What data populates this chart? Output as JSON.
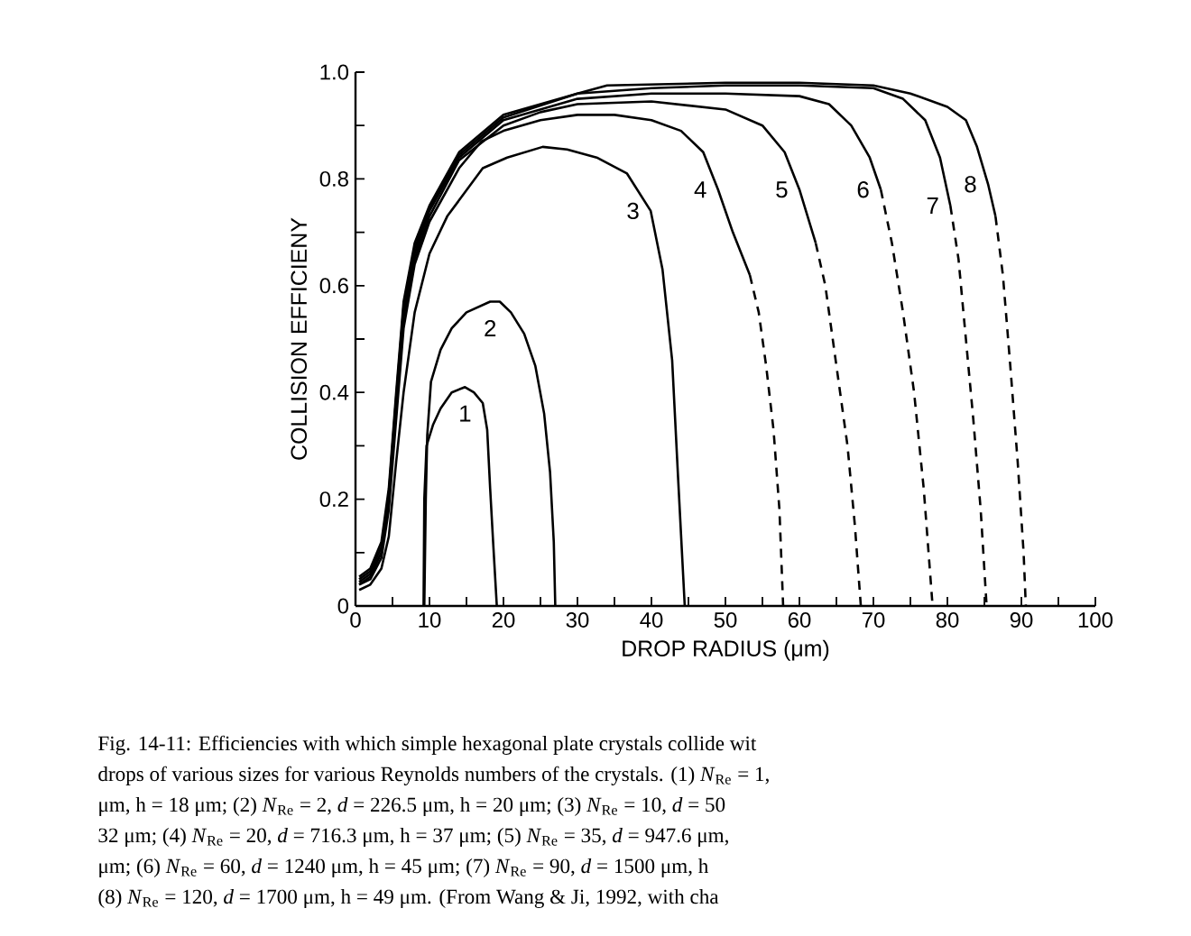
{
  "chart_data": {
    "type": "line",
    "xlabel": "DROP RADIUS (μm)",
    "ylabel": "COLLISION EFFICIENY",
    "xlim": [
      0,
      100
    ],
    "ylim": [
      0,
      1.0
    ],
    "xticks": [
      0,
      {
        "value": 5,
        "label": null
      },
      10,
      {
        "value": 15,
        "label": null
      },
      20,
      {
        "value": 25,
        "label": null
      },
      30,
      {
        "value": 35,
        "label": null
      },
      40,
      {
        "value": 45,
        "label": null
      },
      50,
      {
        "value": 55,
        "label": null
      },
      60,
      {
        "value": 65,
        "label": null
      },
      70,
      {
        "value": 75,
        "label": null
      },
      80,
      {
        "value": 85,
        "label": null
      },
      90,
      {
        "value": 95,
        "label": null
      },
      100
    ],
    "yticks": [
      0,
      {
        "value": 0.1,
        "label": null
      },
      0.2,
      {
        "value": 0.3,
        "label": null
      },
      0.4,
      {
        "value": 0.5,
        "label": null
      },
      0.6,
      {
        "value": 0.7,
        "label": null
      },
      0.8,
      {
        "value": 0.9,
        "label": null
      },
      {
        "value": 1.0,
        "label": "1.0"
      }
    ],
    "series": [
      {
        "name": "1",
        "color": "#000000",
        "line_style": "solid",
        "x": [
          9.2,
          9.3,
          9.6,
          10.5,
          11.5,
          13,
          14.8,
          16,
          17.2,
          17.8,
          18.2,
          18.6,
          19.1
        ],
        "values": [
          0,
          0.2,
          0.3,
          0.34,
          0.37,
          0.4,
          0.41,
          0.4,
          0.38,
          0.33,
          0.22,
          0.12,
          0
        ]
      },
      {
        "name": "2",
        "color": "#000000",
        "line_style": "solid",
        "x": [
          9.3,
          9.5,
          9.7,
          10.2,
          11.5,
          13,
          15,
          18.2,
          19.5,
          21,
          22.8,
          24.3,
          25.5,
          26.3,
          26.8,
          27
        ],
        "values": [
          0,
          0.2,
          0.32,
          0.42,
          0.48,
          0.52,
          0.55,
          0.57,
          0.57,
          0.55,
          0.51,
          0.45,
          0.36,
          0.25,
          0.12,
          0
        ]
      },
      {
        "name": "3",
        "color": "#000000",
        "line_style": "solid",
        "x": [
          0.5,
          2,
          3.5,
          4.5,
          5.5,
          6.5,
          8,
          10,
          12.4,
          17.2,
          20.5,
          25.3,
          28.6,
          32.6,
          36.7,
          39.9,
          41.5,
          42.8,
          43.6,
          44.5
        ],
        "values": [
          0.03,
          0.04,
          0.07,
          0.13,
          0.27,
          0.4,
          0.55,
          0.66,
          0.73,
          0.82,
          0.84,
          0.86,
          0.855,
          0.84,
          0.81,
          0.74,
          0.63,
          0.46,
          0.24,
          0
        ]
      },
      {
        "name": "4",
        "color": "#000000",
        "line_style": "solid",
        "x": [
          0.5,
          2,
          3.5,
          4.5,
          5.5,
          6.5,
          8,
          10,
          14,
          17,
          20,
          25,
          30,
          35,
          40,
          44,
          47,
          49,
          51,
          53.3
        ],
        "values": [
          0.04,
          0.05,
          0.09,
          0.18,
          0.35,
          0.52,
          0.64,
          0.72,
          0.82,
          0.87,
          0.89,
          0.91,
          0.92,
          0.92,
          0.91,
          0.89,
          0.85,
          0.78,
          0.7,
          0.62
        ]
      },
      {
        "color": "#000000",
        "line_style": "dashed",
        "x": [
          53.3,
          54.5,
          55.5,
          56.5,
          57.3,
          57.8
        ],
        "values": [
          0.62,
          0.55,
          0.45,
          0.33,
          0.18,
          0
        ]
      },
      {
        "name": "5",
        "color": "#000000",
        "line_style": "solid",
        "x": [
          0.5,
          2,
          3.5,
          4.5,
          5.5,
          6.5,
          8,
          10,
          14,
          20,
          25,
          30,
          40,
          50,
          55,
          58,
          60,
          62.2
        ],
        "values": [
          0.04,
          0.055,
          0.1,
          0.2,
          0.37,
          0.54,
          0.65,
          0.73,
          0.835,
          0.9,
          0.925,
          0.94,
          0.945,
          0.93,
          0.9,
          0.85,
          0.78,
          0.68
        ]
      },
      {
        "color": "#000000",
        "line_style": "dashed",
        "x": [
          62.2,
          63.5,
          65,
          66.5,
          67.5,
          68.3
        ],
        "values": [
          0.68,
          0.6,
          0.45,
          0.3,
          0.15,
          0
        ]
      },
      {
        "name": "6",
        "color": "#000000",
        "line_style": "solid",
        "x": [
          0.5,
          2,
          3.5,
          4.5,
          5.5,
          6.5,
          8,
          10,
          14,
          20,
          30,
          40,
          50,
          60,
          64,
          67,
          69.5,
          71
        ],
        "values": [
          0.045,
          0.06,
          0.1,
          0.2,
          0.38,
          0.55,
          0.66,
          0.74,
          0.84,
          0.91,
          0.95,
          0.96,
          0.96,
          0.955,
          0.94,
          0.9,
          0.84,
          0.78
        ]
      },
      {
        "color": "#000000",
        "line_style": "dashed",
        "x": [
          71,
          72.5,
          74,
          75.5,
          76.8,
          78
        ],
        "values": [
          0.78,
          0.68,
          0.55,
          0.4,
          0.22,
          0
        ]
      },
      {
        "name": "7",
        "color": "#000000",
        "line_style": "solid",
        "x": [
          0.5,
          2,
          3.5,
          4.5,
          5.5,
          6.5,
          8,
          10,
          14,
          20,
          30,
          40,
          50,
          60,
          70,
          74,
          77,
          79,
          80.4
        ],
        "values": [
          0.05,
          0.065,
          0.11,
          0.21,
          0.39,
          0.56,
          0.67,
          0.745,
          0.845,
          0.915,
          0.96,
          0.97,
          0.975,
          0.975,
          0.97,
          0.95,
          0.91,
          0.84,
          0.75
        ]
      },
      {
        "color": "#000000",
        "line_style": "dashed",
        "x": [
          80.4,
          81.5,
          82.5,
          83.5,
          84.5,
          85.3
        ],
        "values": [
          0.75,
          0.65,
          0.5,
          0.35,
          0.18,
          0
        ]
      },
      {
        "name": "8",
        "color": "#000000",
        "line_style": "solid",
        "x": [
          0.5,
          2,
          3.5,
          4.5,
          5.5,
          6.5,
          8,
          10,
          14,
          20,
          30,
          34,
          50,
          60,
          70,
          75,
          80,
          82.5,
          84,
          85.5,
          86.5
        ],
        "values": [
          0.055,
          0.07,
          0.12,
          0.22,
          0.4,
          0.57,
          0.68,
          0.75,
          0.85,
          0.92,
          0.96,
          0.975,
          0.98,
          0.98,
          0.975,
          0.96,
          0.935,
          0.91,
          0.86,
          0.79,
          0.73
        ]
      },
      {
        "color": "#000000",
        "line_style": "dashed",
        "x": [
          86.5,
          87.5,
          88.5,
          89.5,
          90.3,
          90.6
        ],
        "values": [
          0.73,
          0.62,
          0.45,
          0.27,
          0.1,
          0
        ]
      }
    ],
    "annotations": [
      "Fig. 14-11: Efficiencies with which simple hexagonal plate crystals collide wit",
      "drops of various sizes for various Reynolds numbers of the crystals. (1) *N*$_{Re}$ = 1,",
      "μm, h = 18 μm; (2) *N*$_{Re}$ = 2, *d* = 226.5 μm, h = 20 μm; (3) *N*$_{Re}$ = 10, *d* = 50",
      "32 μm; (4) *N*$_{Re}$ = 20, *d* = 716.3 μm, h = 37 μm; (5) *N*$_{Re}$ = 35, *d* = 947.6 μm,",
      "μm; (6) *N*$_{Re}$ = 60, *d* = 1240 μm, h = 45 μm; (7) *N*$_{Re}$ = 90, *d* = 1500 μm, h",
      "(8) *N*$_{Re}$ = 120, *d* = 1700 μm, h = 49 μm. (From Wang & Ji, 1992, with cha"
    ]
  }
}
